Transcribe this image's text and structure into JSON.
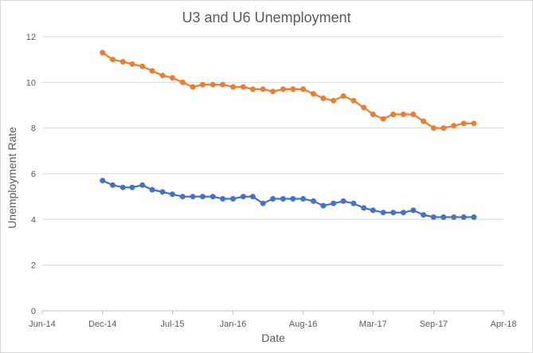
{
  "chart_data": {
    "type": "line",
    "title": "U3 and U6 Unemployment",
    "xlabel": "Date",
    "ylabel": "Unemployment Rate",
    "ylim": [
      0,
      12
    ],
    "yticks": [
      0,
      2,
      4,
      6,
      8,
      10,
      12
    ],
    "x_ticks": [
      "Jun-14",
      "Dec-14",
      "Jul-15",
      "Jan-16",
      "Aug-16",
      "Mar-17",
      "Sep-17",
      "Apr-18"
    ],
    "x_tick_dates": [
      "2014-06-01",
      "2014-12-01",
      "2015-07-01",
      "2016-01-01",
      "2016-08-01",
      "2017-03-01",
      "2017-09-01",
      "2018-04-01"
    ],
    "xlim": [
      "2014-06-01",
      "2018-04-01"
    ],
    "grid": "horizontal",
    "legend": "none",
    "x": [
      "2014-12-01",
      "2015-01-01",
      "2015-02-01",
      "2015-03-01",
      "2015-04-01",
      "2015-05-01",
      "2015-06-01",
      "2015-07-01",
      "2015-08-01",
      "2015-09-01",
      "2015-10-01",
      "2015-11-01",
      "2015-12-01",
      "2016-01-01",
      "2016-02-01",
      "2016-03-01",
      "2016-04-01",
      "2016-05-01",
      "2016-06-01",
      "2016-07-01",
      "2016-08-01",
      "2016-09-01",
      "2016-10-01",
      "2016-11-01",
      "2016-12-01",
      "2017-01-01",
      "2017-02-01",
      "2017-03-01",
      "2017-04-01",
      "2017-05-01",
      "2017-06-01",
      "2017-07-01",
      "2017-08-01",
      "2017-09-01",
      "2017-10-01",
      "2017-11-01",
      "2017-12-01",
      "2018-01-01"
    ],
    "series": [
      {
        "color": "#4472c4",
        "values": [
          5.7,
          5.5,
          5.4,
          5.4,
          5.5,
          5.3,
          5.2,
          5.1,
          5.0,
          5.0,
          5.0,
          5.0,
          4.9,
          4.9,
          5.0,
          5.0,
          4.7,
          4.9,
          4.9,
          4.9,
          4.9,
          4.8,
          4.6,
          4.7,
          4.8,
          4.7,
          4.5,
          4.4,
          4.3,
          4.3,
          4.3,
          4.4,
          4.2,
          4.1,
          4.1,
          4.1,
          4.1,
          4.1
        ]
      },
      {
        "color": "#ed7d31",
        "values": [
          11.3,
          11.0,
          10.9,
          10.8,
          10.7,
          10.5,
          10.3,
          10.2,
          10.0,
          9.8,
          9.9,
          9.9,
          9.9,
          9.8,
          9.8,
          9.7,
          9.7,
          9.6,
          9.7,
          9.7,
          9.7,
          9.5,
          9.3,
          9.2,
          9.4,
          9.2,
          8.9,
          8.6,
          8.4,
          8.6,
          8.6,
          8.6,
          8.3,
          8.0,
          8.0,
          8.1,
          8.2,
          8.2
        ]
      }
    ]
  },
  "colors": {
    "grid": "#d9d9d9",
    "axis": "#bfbfbf",
    "text": "#595959"
  }
}
